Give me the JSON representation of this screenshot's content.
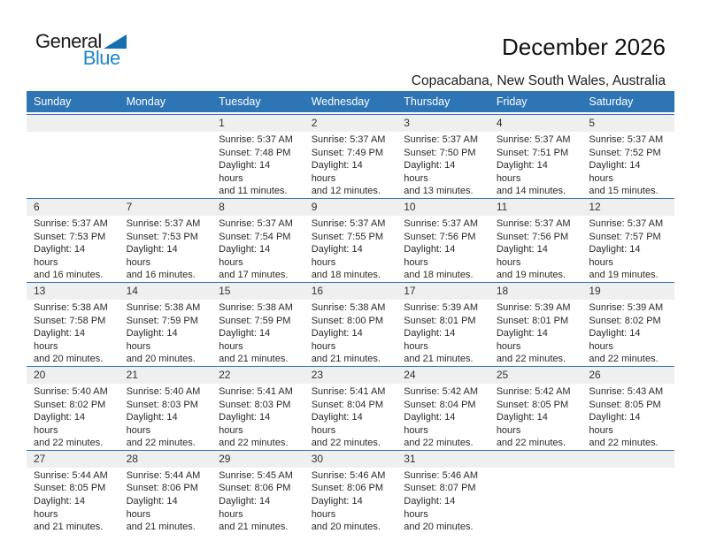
{
  "logo": {
    "word1": "General",
    "word2": "Blue"
  },
  "header": {
    "title": "December 2026",
    "subtitle": "Copacabana, New South Wales, Australia"
  },
  "colors": {
    "header_blue": "#2e75b6",
    "logo_blue": "#1e87c7",
    "logo_triangle_blue": "#1470b0",
    "row_stripe_gray": "#efefef"
  },
  "calendar": {
    "weekday_headers": [
      "Sunday",
      "Monday",
      "Tuesday",
      "Wednesday",
      "Thursday",
      "Friday",
      "Saturday"
    ],
    "weeks": [
      {
        "days": [
          null,
          null,
          {
            "day": "1",
            "sunrise": "Sunrise: 5:37 AM",
            "sunset": "Sunset: 7:48 PM",
            "daylight1": "Daylight: 14 hours",
            "daylight2": "and 11 minutes."
          },
          {
            "day": "2",
            "sunrise": "Sunrise: 5:37 AM",
            "sunset": "Sunset: 7:49 PM",
            "daylight1": "Daylight: 14 hours",
            "daylight2": "and 12 minutes."
          },
          {
            "day": "3",
            "sunrise": "Sunrise: 5:37 AM",
            "sunset": "Sunset: 7:50 PM",
            "daylight1": "Daylight: 14 hours",
            "daylight2": "and 13 minutes."
          },
          {
            "day": "4",
            "sunrise": "Sunrise: 5:37 AM",
            "sunset": "Sunset: 7:51 PM",
            "daylight1": "Daylight: 14 hours",
            "daylight2": "and 14 minutes."
          },
          {
            "day": "5",
            "sunrise": "Sunrise: 5:37 AM",
            "sunset": "Sunset: 7:52 PM",
            "daylight1": "Daylight: 14 hours",
            "daylight2": "and 15 minutes."
          }
        ]
      },
      {
        "days": [
          {
            "day": "6",
            "sunrise": "Sunrise: 5:37 AM",
            "sunset": "Sunset: 7:53 PM",
            "daylight1": "Daylight: 14 hours",
            "daylight2": "and 16 minutes."
          },
          {
            "day": "7",
            "sunrise": "Sunrise: 5:37 AM",
            "sunset": "Sunset: 7:53 PM",
            "daylight1": "Daylight: 14 hours",
            "daylight2": "and 16 minutes."
          },
          {
            "day": "8",
            "sunrise": "Sunrise: 5:37 AM",
            "sunset": "Sunset: 7:54 PM",
            "daylight1": "Daylight: 14 hours",
            "daylight2": "and 17 minutes."
          },
          {
            "day": "9",
            "sunrise": "Sunrise: 5:37 AM",
            "sunset": "Sunset: 7:55 PM",
            "daylight1": "Daylight: 14 hours",
            "daylight2": "and 18 minutes."
          },
          {
            "day": "10",
            "sunrise": "Sunrise: 5:37 AM",
            "sunset": "Sunset: 7:56 PM",
            "daylight1": "Daylight: 14 hours",
            "daylight2": "and 18 minutes."
          },
          {
            "day": "11",
            "sunrise": "Sunrise: 5:37 AM",
            "sunset": "Sunset: 7:56 PM",
            "daylight1": "Daylight: 14 hours",
            "daylight2": "and 19 minutes."
          },
          {
            "day": "12",
            "sunrise": "Sunrise: 5:37 AM",
            "sunset": "Sunset: 7:57 PM",
            "daylight1": "Daylight: 14 hours",
            "daylight2": "and 19 minutes."
          }
        ]
      },
      {
        "days": [
          {
            "day": "13",
            "sunrise": "Sunrise: 5:38 AM",
            "sunset": "Sunset: 7:58 PM",
            "daylight1": "Daylight: 14 hours",
            "daylight2": "and 20 minutes."
          },
          {
            "day": "14",
            "sunrise": "Sunrise: 5:38 AM",
            "sunset": "Sunset: 7:59 PM",
            "daylight1": "Daylight: 14 hours",
            "daylight2": "and 20 minutes."
          },
          {
            "day": "15",
            "sunrise": "Sunrise: 5:38 AM",
            "sunset": "Sunset: 7:59 PM",
            "daylight1": "Daylight: 14 hours",
            "daylight2": "and 21 minutes."
          },
          {
            "day": "16",
            "sunrise": "Sunrise: 5:38 AM",
            "sunset": "Sunset: 8:00 PM",
            "daylight1": "Daylight: 14 hours",
            "daylight2": "and 21 minutes."
          },
          {
            "day": "17",
            "sunrise": "Sunrise: 5:39 AM",
            "sunset": "Sunset: 8:01 PM",
            "daylight1": "Daylight: 14 hours",
            "daylight2": "and 21 minutes."
          },
          {
            "day": "18",
            "sunrise": "Sunrise: 5:39 AM",
            "sunset": "Sunset: 8:01 PM",
            "daylight1": "Daylight: 14 hours",
            "daylight2": "and 22 minutes."
          },
          {
            "day": "19",
            "sunrise": "Sunrise: 5:39 AM",
            "sunset": "Sunset: 8:02 PM",
            "daylight1": "Daylight: 14 hours",
            "daylight2": "and 22 minutes."
          }
        ]
      },
      {
        "days": [
          {
            "day": "20",
            "sunrise": "Sunrise: 5:40 AM",
            "sunset": "Sunset: 8:02 PM",
            "daylight1": "Daylight: 14 hours",
            "daylight2": "and 22 minutes."
          },
          {
            "day": "21",
            "sunrise": "Sunrise: 5:40 AM",
            "sunset": "Sunset: 8:03 PM",
            "daylight1": "Daylight: 14 hours",
            "daylight2": "and 22 minutes."
          },
          {
            "day": "22",
            "sunrise": "Sunrise: 5:41 AM",
            "sunset": "Sunset: 8:03 PM",
            "daylight1": "Daylight: 14 hours",
            "daylight2": "and 22 minutes."
          },
          {
            "day": "23",
            "sunrise": "Sunrise: 5:41 AM",
            "sunset": "Sunset: 8:04 PM",
            "daylight1": "Daylight: 14 hours",
            "daylight2": "and 22 minutes."
          },
          {
            "day": "24",
            "sunrise": "Sunrise: 5:42 AM",
            "sunset": "Sunset: 8:04 PM",
            "daylight1": "Daylight: 14 hours",
            "daylight2": "and 22 minutes."
          },
          {
            "day": "25",
            "sunrise": "Sunrise: 5:42 AM",
            "sunset": "Sunset: 8:05 PM",
            "daylight1": "Daylight: 14 hours",
            "daylight2": "and 22 minutes."
          },
          {
            "day": "26",
            "sunrise": "Sunrise: 5:43 AM",
            "sunset": "Sunset: 8:05 PM",
            "daylight1": "Daylight: 14 hours",
            "daylight2": "and 22 minutes."
          }
        ]
      },
      {
        "days": [
          {
            "day": "27",
            "sunrise": "Sunrise: 5:44 AM",
            "sunset": "Sunset: 8:05 PM",
            "daylight1": "Daylight: 14 hours",
            "daylight2": "and 21 minutes."
          },
          {
            "day": "28",
            "sunrise": "Sunrise: 5:44 AM",
            "sunset": "Sunset: 8:06 PM",
            "daylight1": "Daylight: 14 hours",
            "daylight2": "and 21 minutes."
          },
          {
            "day": "29",
            "sunrise": "Sunrise: 5:45 AM",
            "sunset": "Sunset: 8:06 PM",
            "daylight1": "Daylight: 14 hours",
            "daylight2": "and 21 minutes."
          },
          {
            "day": "30",
            "sunrise": "Sunrise: 5:46 AM",
            "sunset": "Sunset: 8:06 PM",
            "daylight1": "Daylight: 14 hours",
            "daylight2": "and 20 minutes."
          },
          {
            "day": "31",
            "sunrise": "Sunrise: 5:46 AM",
            "sunset": "Sunset: 8:07 PM",
            "daylight1": "Daylight: 14 hours",
            "daylight2": "and 20 minutes."
          },
          null,
          null
        ]
      }
    ]
  }
}
